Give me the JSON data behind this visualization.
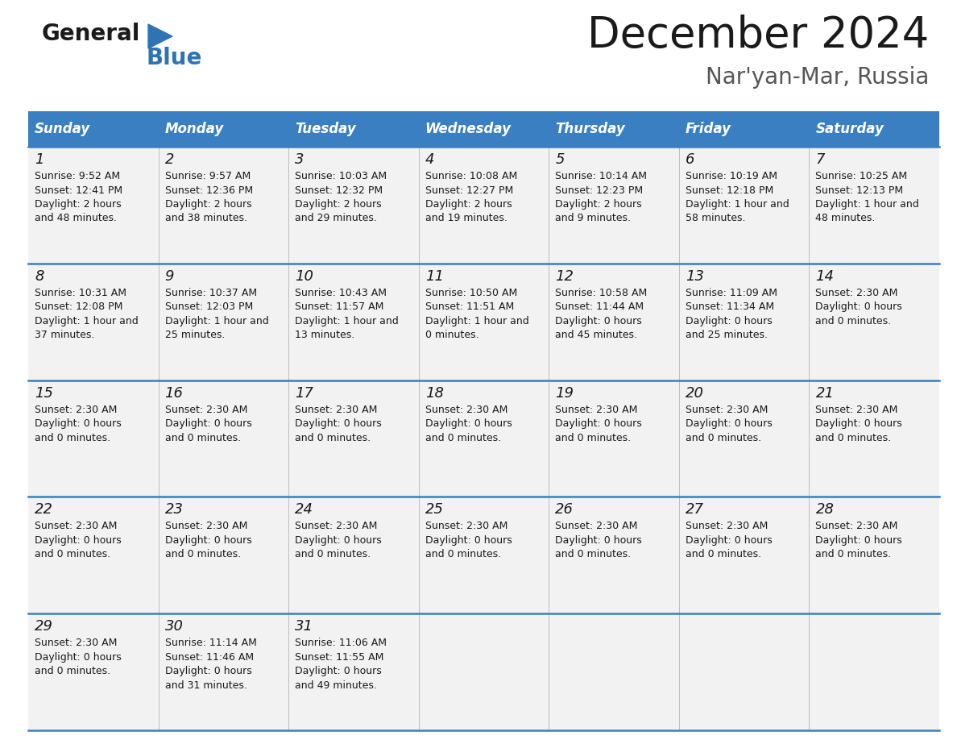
{
  "title": "December 2024",
  "subtitle": "Nar'yan-Mar, Russia",
  "header_bg": "#3A7FC1",
  "header_text_color": "#FFFFFF",
  "cell_bg": "#F2F2F2",
  "empty_bg": "#FFFFFF",
  "day_names": [
    "Sunday",
    "Monday",
    "Tuesday",
    "Wednesday",
    "Thursday",
    "Friday",
    "Saturday"
  ],
  "weeks": [
    [
      {
        "day": 1,
        "text": "Sunrise: 9:52 AM\nSunset: 12:41 PM\nDaylight: 2 hours\nand 48 minutes."
      },
      {
        "day": 2,
        "text": "Sunrise: 9:57 AM\nSunset: 12:36 PM\nDaylight: 2 hours\nand 38 minutes."
      },
      {
        "day": 3,
        "text": "Sunrise: 10:03 AM\nSunset: 12:32 PM\nDaylight: 2 hours\nand 29 minutes."
      },
      {
        "day": 4,
        "text": "Sunrise: 10:08 AM\nSunset: 12:27 PM\nDaylight: 2 hours\nand 19 minutes."
      },
      {
        "day": 5,
        "text": "Sunrise: 10:14 AM\nSunset: 12:23 PM\nDaylight: 2 hours\nand 9 minutes."
      },
      {
        "day": 6,
        "text": "Sunrise: 10:19 AM\nSunset: 12:18 PM\nDaylight: 1 hour and\n58 minutes."
      },
      {
        "day": 7,
        "text": "Sunrise: 10:25 AM\nSunset: 12:13 PM\nDaylight: 1 hour and\n48 minutes."
      }
    ],
    [
      {
        "day": 8,
        "text": "Sunrise: 10:31 AM\nSunset: 12:08 PM\nDaylight: 1 hour and\n37 minutes."
      },
      {
        "day": 9,
        "text": "Sunrise: 10:37 AM\nSunset: 12:03 PM\nDaylight: 1 hour and\n25 minutes."
      },
      {
        "day": 10,
        "text": "Sunrise: 10:43 AM\nSunset: 11:57 AM\nDaylight: 1 hour and\n13 minutes."
      },
      {
        "day": 11,
        "text": "Sunrise: 10:50 AM\nSunset: 11:51 AM\nDaylight: 1 hour and\n0 minutes."
      },
      {
        "day": 12,
        "text": "Sunrise: 10:58 AM\nSunset: 11:44 AM\nDaylight: 0 hours\nand 45 minutes."
      },
      {
        "day": 13,
        "text": "Sunrise: 11:09 AM\nSunset: 11:34 AM\nDaylight: 0 hours\nand 25 minutes."
      },
      {
        "day": 14,
        "text": "Sunset: 2:30 AM\nDaylight: 0 hours\nand 0 minutes."
      }
    ],
    [
      {
        "day": 15,
        "text": "Sunset: 2:30 AM\nDaylight: 0 hours\nand 0 minutes."
      },
      {
        "day": 16,
        "text": "Sunset: 2:30 AM\nDaylight: 0 hours\nand 0 minutes."
      },
      {
        "day": 17,
        "text": "Sunset: 2:30 AM\nDaylight: 0 hours\nand 0 minutes."
      },
      {
        "day": 18,
        "text": "Sunset: 2:30 AM\nDaylight: 0 hours\nand 0 minutes."
      },
      {
        "day": 19,
        "text": "Sunset: 2:30 AM\nDaylight: 0 hours\nand 0 minutes."
      },
      {
        "day": 20,
        "text": "Sunset: 2:30 AM\nDaylight: 0 hours\nand 0 minutes."
      },
      {
        "day": 21,
        "text": "Sunset: 2:30 AM\nDaylight: 0 hours\nand 0 minutes."
      }
    ],
    [
      {
        "day": 22,
        "text": "Sunset: 2:30 AM\nDaylight: 0 hours\nand 0 minutes."
      },
      {
        "day": 23,
        "text": "Sunset: 2:30 AM\nDaylight: 0 hours\nand 0 minutes."
      },
      {
        "day": 24,
        "text": "Sunset: 2:30 AM\nDaylight: 0 hours\nand 0 minutes."
      },
      {
        "day": 25,
        "text": "Sunset: 2:30 AM\nDaylight: 0 hours\nand 0 minutes."
      },
      {
        "day": 26,
        "text": "Sunset: 2:30 AM\nDaylight: 0 hours\nand 0 minutes."
      },
      {
        "day": 27,
        "text": "Sunset: 2:30 AM\nDaylight: 0 hours\nand 0 minutes."
      },
      {
        "day": 28,
        "text": "Sunset: 2:30 AM\nDaylight: 0 hours\nand 0 minutes."
      }
    ],
    [
      {
        "day": 29,
        "text": "Sunset: 2:30 AM\nDaylight: 0 hours\nand 0 minutes."
      },
      {
        "day": 30,
        "text": "Sunrise: 11:14 AM\nSunset: 11:46 AM\nDaylight: 0 hours\nand 31 minutes."
      },
      {
        "day": 31,
        "text": "Sunrise: 11:06 AM\nSunset: 11:55 AM\nDaylight: 0 hours\nand 49 minutes."
      },
      {
        "day": null,
        "text": ""
      },
      {
        "day": null,
        "text": ""
      },
      {
        "day": null,
        "text": ""
      },
      {
        "day": null,
        "text": ""
      }
    ]
  ],
  "logo_general_color": "#1A1A1A",
  "logo_blue_color": "#2E74B5",
  "title_fontsize": 38,
  "subtitle_fontsize": 20,
  "header_fontsize": 12,
  "day_num_fontsize": 13,
  "cell_text_fontsize": 9,
  "divider_color": "#3A7FC1",
  "separator_color": "#AAAAAA"
}
